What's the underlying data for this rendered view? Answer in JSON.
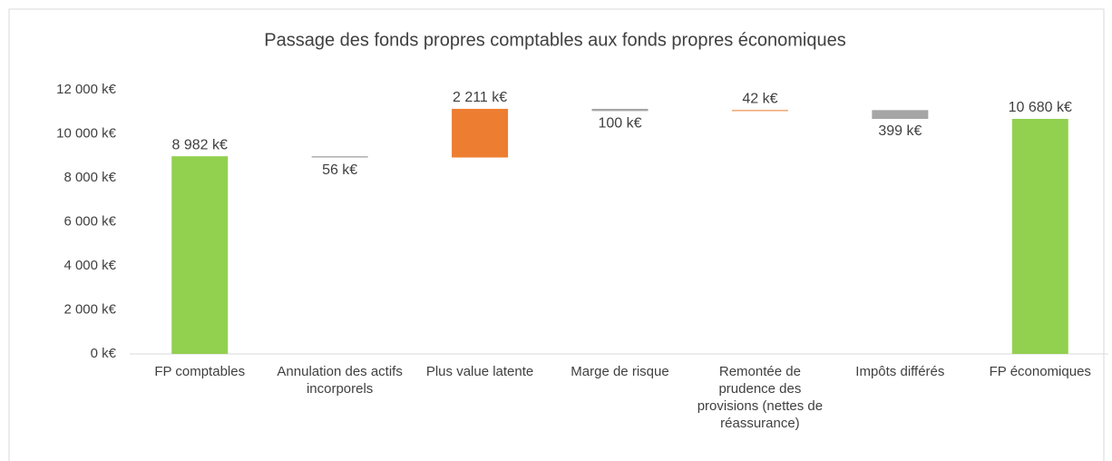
{
  "chart_data": {
    "type": "waterfall",
    "title": "Passage des fonds propres comptables aux fonds propres économiques",
    "categories": [
      "FP comptables",
      "Annulation des actifs incorporels",
      "Plus value latente",
      "Marge de risque",
      "Remontée de prudence des provisions (nettes de réassurance)",
      "Impôts différés",
      "FP économiques"
    ],
    "values": [
      8982,
      -56,
      2211,
      -100,
      42,
      -399,
      10680
    ],
    "value_labels": [
      "8 982  k€",
      "56  k€",
      "2 211  k€",
      "100  k€",
      "42  k€",
      "399  k€",
      "10 680  k€"
    ],
    "totals": [
      true,
      false,
      false,
      false,
      false,
      false,
      true
    ],
    "total_color": "#92d050",
    "increase_color": "#ed7d31",
    "decrease_color": "#a5a5a5",
    "ylim": [
      0,
      12000
    ],
    "yticks": [
      {
        "value": 0,
        "label": "0  k€"
      },
      {
        "value": 2000,
        "label": "2 000  k€"
      },
      {
        "value": 4000,
        "label": "4 000  k€"
      },
      {
        "value": 6000,
        "label": "6 000  k€"
      },
      {
        "value": 8000,
        "label": "8 000  k€"
      },
      {
        "value": 10000,
        "label": "10 000  k€"
      },
      {
        "value": 12000,
        "label": "12 000  k€"
      }
    ],
    "grid": false
  }
}
